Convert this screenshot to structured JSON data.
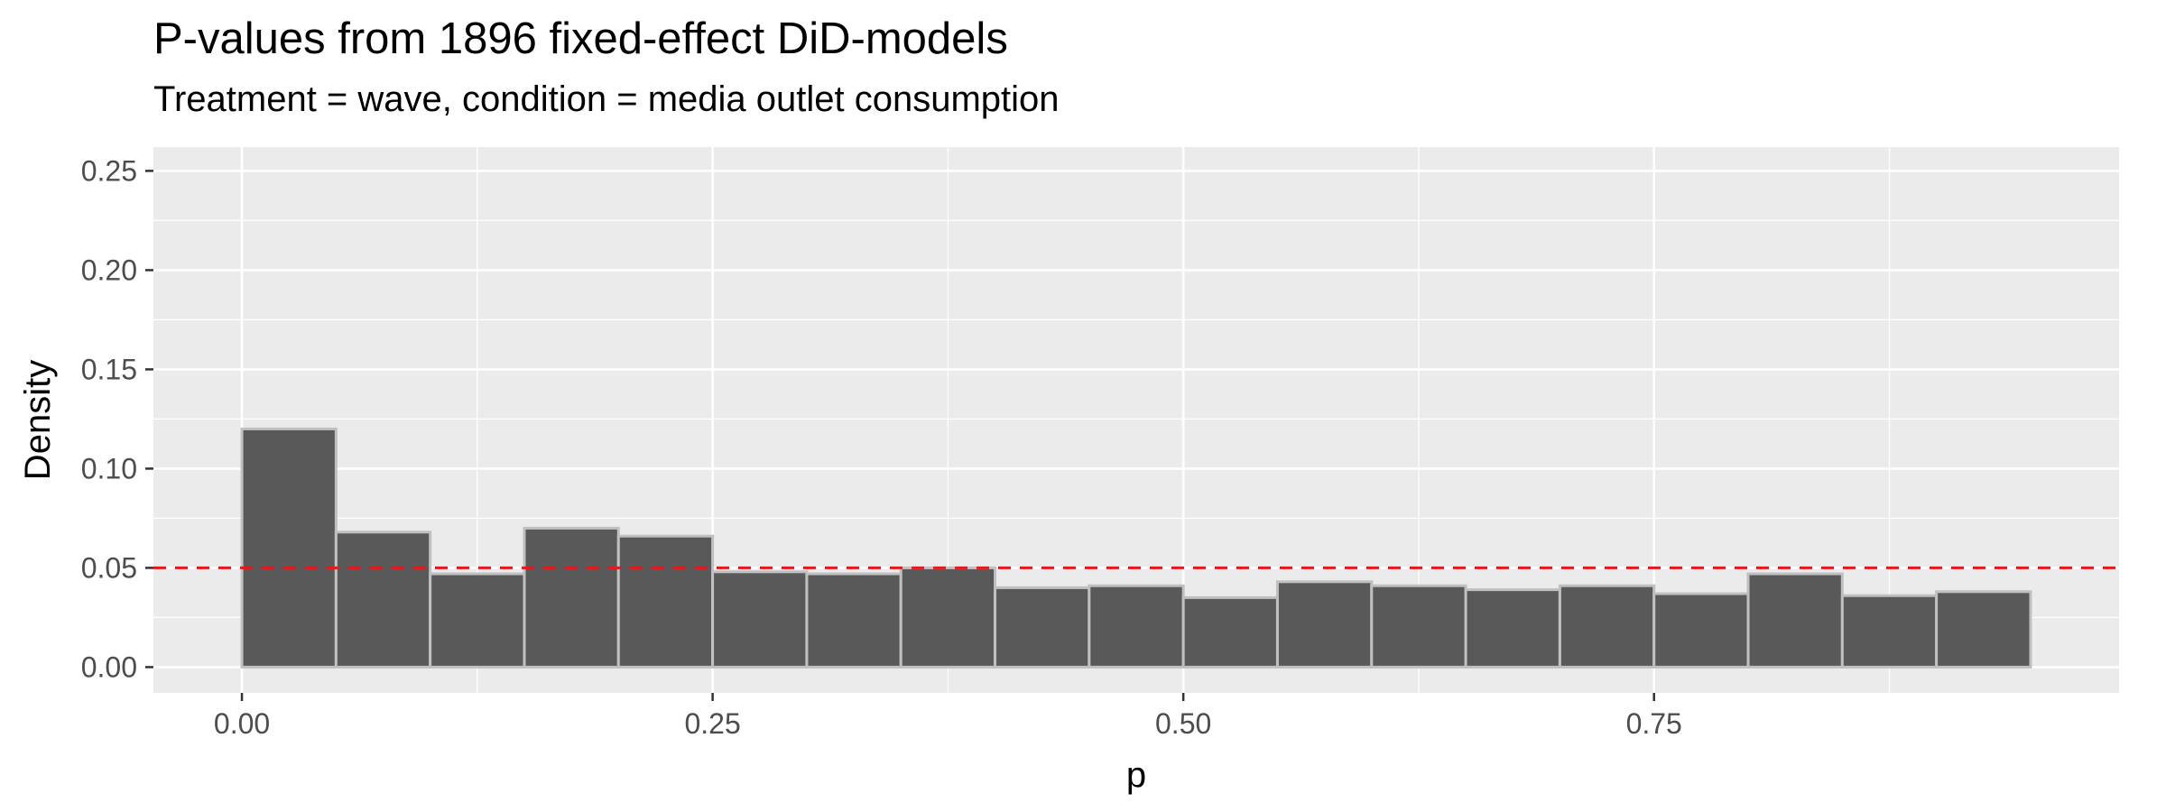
{
  "chart_data": {
    "type": "bar",
    "title": "P-values from 1896 fixed-effect DiD-models",
    "subtitle": "Treatment = wave, condition = media outlet consumption",
    "xlabel": "p",
    "ylabel": "Density",
    "bin_width": 0.05,
    "bins": [
      {
        "start": 0.0,
        "value": 0.12
      },
      {
        "start": 0.05,
        "value": 0.068
      },
      {
        "start": 0.1,
        "value": 0.047
      },
      {
        "start": 0.15,
        "value": 0.07
      },
      {
        "start": 0.2,
        "value": 0.066
      },
      {
        "start": 0.25,
        "value": 0.048
      },
      {
        "start": 0.3,
        "value": 0.047
      },
      {
        "start": 0.35,
        "value": 0.05
      },
      {
        "start": 0.4,
        "value": 0.04
      },
      {
        "start": 0.45,
        "value": 0.041
      },
      {
        "start": 0.5,
        "value": 0.035
      },
      {
        "start": 0.55,
        "value": 0.043
      },
      {
        "start": 0.6,
        "value": 0.041
      },
      {
        "start": 0.65,
        "value": 0.039
      },
      {
        "start": 0.7,
        "value": 0.041
      },
      {
        "start": 0.75,
        "value": 0.037
      },
      {
        "start": 0.8,
        "value": 0.047
      },
      {
        "start": 0.85,
        "value": 0.036
      },
      {
        "start": 0.9,
        "value": 0.038
      }
    ],
    "reference_line": {
      "y": 0.05,
      "color": "#e31a1c",
      "style": "dashed"
    },
    "xlim": [
      -0.047,
      0.997
    ],
    "ylim": [
      -0.013,
      0.262
    ],
    "x_ticks": [
      0.0,
      0.25,
      0.5,
      0.75
    ],
    "x_tick_labels": [
      "0.00",
      "0.25",
      "0.50",
      "0.75"
    ],
    "y_ticks": [
      0.0,
      0.05,
      0.1,
      0.15,
      0.2,
      0.25
    ],
    "y_tick_labels": [
      "0.00",
      "0.05",
      "0.10",
      "0.15",
      "0.20",
      "0.25"
    ],
    "grid": true,
    "colors": {
      "panel": "#ebebeb",
      "grid": "#ffffff",
      "bar_fill": "#595959",
      "bar_stroke": "#c0c0c0",
      "axis_text": "#4d4d4d"
    }
  }
}
